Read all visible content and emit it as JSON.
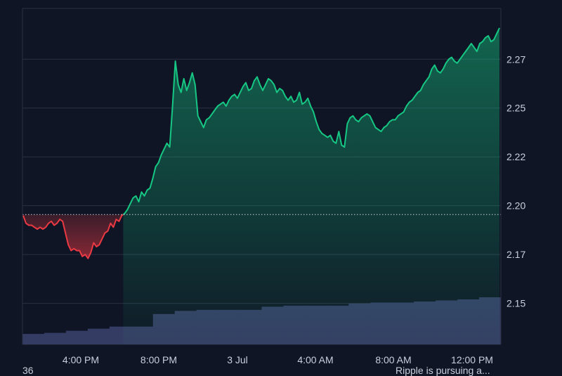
{
  "chart_data": {
    "type": "area",
    "x_ticks": [
      "4:00 PM",
      "8:00 PM",
      "3 Jul",
      "4:00 AM",
      "8:00 AM",
      "12:00 PM"
    ],
    "y_ticks": [
      "2.15",
      "2.17",
      "2.20",
      "2.22",
      "2.25",
      "2.27"
    ],
    "y_tick_values": [
      2.15,
      2.175,
      2.2,
      2.225,
      2.25,
      2.275
    ],
    "ylim": [
      2.129,
      2.301
    ],
    "baseline": 2.1955,
    "grid": true,
    "colors": {
      "up": "#16c784",
      "down": "#ea3943",
      "volume": "#353c63",
      "grid": "#2a3144",
      "background": "#0f1524"
    },
    "price": [
      2.195,
      2.191,
      2.19,
      2.19,
      2.189,
      2.188,
      2.189,
      2.188,
      2.189,
      2.191,
      2.192,
      2.19,
      2.191,
      2.193,
      2.192,
      2.186,
      2.18,
      2.177,
      2.178,
      2.177,
      2.177,
      2.174,
      2.175,
      2.173,
      2.176,
      2.181,
      2.179,
      2.18,
      2.183,
      2.186,
      2.187,
      2.191,
      2.189,
      2.193,
      2.192,
      2.195,
      2.196,
      2.198,
      2.201,
      2.204,
      2.205,
      2.202,
      2.207,
      2.205,
      2.208,
      2.209,
      2.214,
      2.22,
      2.222,
      2.226,
      2.229,
      2.232,
      2.23,
      2.251,
      2.274,
      2.262,
      2.258,
      2.265,
      2.259,
      2.263,
      2.268,
      2.262,
      2.246,
      2.243,
      2.24,
      2.244,
      2.245,
      2.247,
      2.249,
      2.251,
      2.252,
      2.253,
      2.251,
      2.254,
      2.256,
      2.257,
      2.255,
      2.258,
      2.261,
      2.263,
      2.259,
      2.26,
      2.264,
      2.266,
      2.262,
      2.259,
      2.262,
      2.265,
      2.264,
      2.262,
      2.258,
      2.26,
      2.259,
      2.256,
      2.254,
      2.256,
      2.253,
      2.254,
      2.258,
      2.252,
      2.253,
      2.255,
      2.251,
      2.248,
      2.243,
      2.239,
      2.237,
      2.236,
      2.235,
      2.236,
      2.233,
      2.232,
      2.238,
      2.231,
      2.23,
      2.242,
      2.245,
      2.246,
      2.244,
      2.243,
      2.245,
      2.246,
      2.247,
      2.246,
      2.243,
      2.24,
      2.239,
      2.238,
      2.24,
      2.241,
      2.243,
      2.244,
      2.244,
      2.246,
      2.247,
      2.248,
      2.251,
      2.253,
      2.254,
      2.256,
      2.258,
      2.259,
      2.262,
      2.264,
      2.266,
      2.27,
      2.272,
      2.269,
      2.268,
      2.27,
      2.273,
      2.275,
      2.276,
      2.274,
      2.273,
      2.275,
      2.277,
      2.279,
      2.281,
      2.283,
      2.281,
      2.279,
      2.283,
      2.284,
      2.286,
      2.287,
      2.284,
      2.285,
      2.288,
      2.291
    ],
    "volume": [
      0.65,
      0.66,
      0.68,
      0.7,
      0.72,
      0.72,
      0.84,
      0.87,
      0.88,
      0.88,
      0.88,
      0.91,
      0.92,
      0.92,
      0.92,
      0.94,
      0.95,
      0.95,
      0.96,
      0.97,
      0.98,
      1.0
    ]
  },
  "footer": {
    "left": "36",
    "right": "Ripple is pursuing a..."
  }
}
